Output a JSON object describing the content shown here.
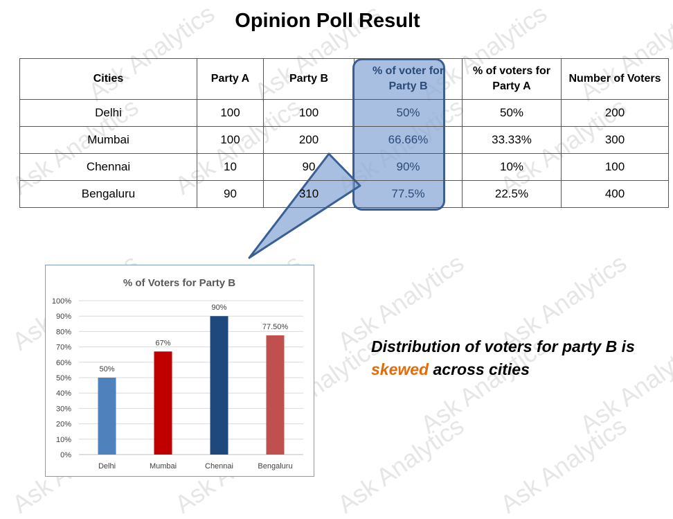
{
  "title": "Opinion Poll Result",
  "watermark": "Ask Analytics",
  "table": {
    "headers": [
      "Cities",
      "Party A",
      "Party B",
      "% of voter for Party B",
      "% of voters for Party A",
      "Number of Voters"
    ],
    "rows": [
      [
        "Delhi",
        "100",
        "100",
        "50%",
        "50%",
        "200"
      ],
      [
        "Mumbai",
        "100",
        "200",
        "66.66%",
        "33.33%",
        "300"
      ],
      [
        "Chennai",
        "10",
        "90",
        "90%",
        "10%",
        "100"
      ],
      [
        "Bengaluru",
        "90",
        "310",
        "77.5%",
        "22.5%",
        "400"
      ]
    ]
  },
  "conclusion": {
    "line1": "Distribution of voters for party B is",
    "emphasis": "skewed",
    "rest": " across cities"
  },
  "colors": {
    "highlight_fill": "#8caad7",
    "highlight_border": "#3a5f93",
    "emphasis": "#e36c0a"
  },
  "chart_data": {
    "type": "bar",
    "title": "% of Voters for Party B",
    "categories": [
      "Delhi",
      "Mumbai",
      "Chennai",
      "Bengaluru"
    ],
    "values": [
      50,
      67,
      90,
      77.5
    ],
    "data_labels": [
      "50%",
      "67%",
      "90%",
      "77.50%"
    ],
    "bar_colors": [
      "#4f81bd",
      "#c00000",
      "#1f497d",
      "#c0504d"
    ],
    "ylim": [
      0,
      100
    ],
    "yticks": [
      0,
      10,
      20,
      30,
      40,
      50,
      60,
      70,
      80,
      90,
      100
    ],
    "ytick_labels": [
      "0%",
      "10%",
      "20%",
      "30%",
      "40%",
      "50%",
      "60%",
      "70%",
      "80%",
      "90%",
      "100%"
    ],
    "grid": true,
    "xlabel": "",
    "ylabel": ""
  }
}
